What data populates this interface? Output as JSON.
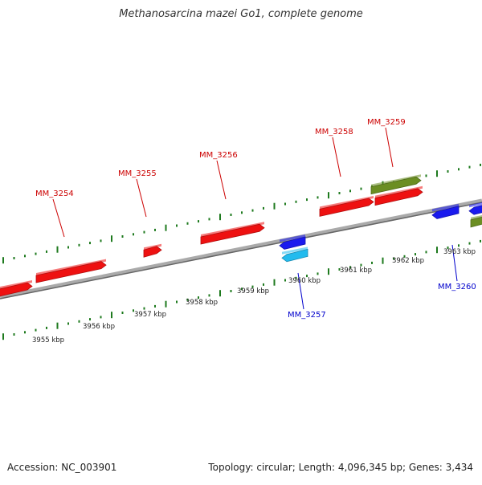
{
  "title": "Methanosarcina mazei Go1, complete genome",
  "footer": {
    "accession": "Accession: NC_003901",
    "summary": "Topology: circular; Length: 4,096,345 bp; Genes: 3,434"
  },
  "colors": {
    "forward_gene": "#ee1111",
    "reverse_gene": "#1a1aee",
    "rna_gene": "#22bbee",
    "other_feature": "#6b8e23",
    "tick": "#1e7a1e",
    "backbone": "#888888",
    "forward_label": "#cc0000",
    "reverse_label": "#0000cc"
  },
  "scale": {
    "unit": "kbp",
    "labels": [
      "3955 kbp",
      "3956 kbp",
      "3957 kbp",
      "3958 kbp",
      "3959 kbp",
      "3960 kbp",
      "3961 kbp",
      "3962 kbp",
      "3963 kbp"
    ]
  },
  "genes": [
    {
      "strand": "forward",
      "color_key": "forward_gene",
      "lane": 0
    },
    {
      "strand": "forward",
      "color_key": "forward_gene",
      "lane": 0
    },
    {
      "strand": "forward",
      "color_key": "forward_gene",
      "lane": 0
    },
    {
      "strand": "forward",
      "color_key": "forward_gene",
      "lane": 0
    },
    {
      "strand": "forward",
      "color_key": "forward_gene",
      "lane": 0
    },
    {
      "strand": "forward",
      "color_key": "forward_gene",
      "lane": 0
    },
    {
      "strand": "forward",
      "color_key": "other_feature",
      "lane": 1
    },
    {
      "strand": "reverse",
      "color_key": "reverse_gene",
      "lane": 0
    },
    {
      "strand": "reverse",
      "color_key": "rna_gene",
      "lane": 1
    },
    {
      "strand": "reverse",
      "color_key": "reverse_gene",
      "lane": 0
    },
    {
      "strand": "reverse",
      "color_key": "reverse_gene",
      "lane": 0
    },
    {
      "strand": "reverse",
      "color_key": "other_feature",
      "lane": 1
    }
  ],
  "labels": [
    {
      "text": "MM_3254",
      "strand": "forward"
    },
    {
      "text": "MM_3255",
      "strand": "forward"
    },
    {
      "text": "MM_3256",
      "strand": "forward"
    },
    {
      "text": "MM_3258",
      "strand": "forward"
    },
    {
      "text": "MM_3259",
      "strand": "forward"
    },
    {
      "text": "MM_3257",
      "strand": "reverse"
    },
    {
      "text": "MM_3260",
      "strand": "reverse"
    }
  ]
}
